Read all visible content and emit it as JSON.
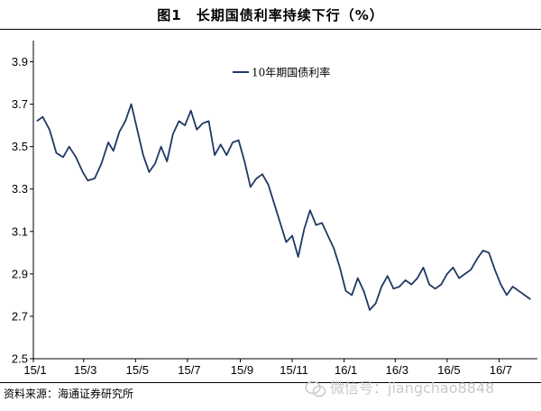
{
  "figure": {
    "title": "图1　长期国债利率持续下行（%）",
    "source": "资料来源：海通证券研究所",
    "watermark": "微信号：jiangchao8848"
  },
  "chart_data": {
    "type": "line",
    "title": "",
    "xlabel": "",
    "ylabel": "",
    "ylim": [
      2.5,
      4.0
    ],
    "yticks": [
      "2.5",
      "2.7",
      "2.9",
      "3.1",
      "3.3",
      "3.5",
      "3.7",
      "3.9"
    ],
    "xticks": [
      "15/1",
      "15/3",
      "15/5",
      "15/7",
      "15/9",
      "15/11",
      "16/1",
      "16/3",
      "16/5",
      "16/7"
    ],
    "xlim": [
      "2015-01-01",
      "2016-08-15"
    ],
    "grid": false,
    "legend_placement": "top-left",
    "series": [
      {
        "name": "10年期国债利率",
        "color": "#1f3864",
        "points": [
          [
            "2015-01-05",
            3.62
          ],
          [
            "2015-01-12",
            3.64
          ],
          [
            "2015-01-20",
            3.58
          ],
          [
            "2015-01-28",
            3.47
          ],
          [
            "2015-02-05",
            3.45
          ],
          [
            "2015-02-12",
            3.5
          ],
          [
            "2015-02-20",
            3.45
          ],
          [
            "2015-02-28",
            3.38
          ],
          [
            "2015-03-06",
            3.34
          ],
          [
            "2015-03-14",
            3.35
          ],
          [
            "2015-03-22",
            3.42
          ],
          [
            "2015-03-30",
            3.52
          ],
          [
            "2015-04-05",
            3.48
          ],
          [
            "2015-04-12",
            3.57
          ],
          [
            "2015-04-19",
            3.62
          ],
          [
            "2015-04-26",
            3.7
          ],
          [
            "2015-05-03",
            3.58
          ],
          [
            "2015-05-10",
            3.46
          ],
          [
            "2015-05-17",
            3.38
          ],
          [
            "2015-05-24",
            3.42
          ],
          [
            "2015-05-31",
            3.5
          ],
          [
            "2015-06-07",
            3.43
          ],
          [
            "2015-06-14",
            3.56
          ],
          [
            "2015-06-21",
            3.62
          ],
          [
            "2015-06-28",
            3.6
          ],
          [
            "2015-07-05",
            3.67
          ],
          [
            "2015-07-12",
            3.58
          ],
          [
            "2015-07-19",
            3.61
          ],
          [
            "2015-07-26",
            3.62
          ],
          [
            "2015-08-02",
            3.46
          ],
          [
            "2015-08-09",
            3.51
          ],
          [
            "2015-08-16",
            3.46
          ],
          [
            "2015-08-23",
            3.52
          ],
          [
            "2015-08-30",
            3.53
          ],
          [
            "2015-09-06",
            3.43
          ],
          [
            "2015-09-13",
            3.31
          ],
          [
            "2015-09-20",
            3.35
          ],
          [
            "2015-09-27",
            3.37
          ],
          [
            "2015-10-04",
            3.32
          ],
          [
            "2015-10-11",
            3.23
          ],
          [
            "2015-10-18",
            3.14
          ],
          [
            "2015-10-25",
            3.05
          ],
          [
            "2015-11-01",
            3.08
          ],
          [
            "2015-11-08",
            2.98
          ],
          [
            "2015-11-15",
            3.11
          ],
          [
            "2015-11-22",
            3.2
          ],
          [
            "2015-11-29",
            3.13
          ],
          [
            "2015-12-06",
            3.14
          ],
          [
            "2015-12-13",
            3.08
          ],
          [
            "2015-12-20",
            3.02
          ],
          [
            "2015-12-27",
            2.93
          ],
          [
            "2016-01-03",
            2.82
          ],
          [
            "2016-01-10",
            2.8
          ],
          [
            "2016-01-17",
            2.88
          ],
          [
            "2016-01-24",
            2.82
          ],
          [
            "2016-01-31",
            2.73
          ],
          [
            "2016-02-07",
            2.76
          ],
          [
            "2016-02-14",
            2.84
          ],
          [
            "2016-02-21",
            2.89
          ],
          [
            "2016-02-28",
            2.83
          ],
          [
            "2016-03-06",
            2.84
          ],
          [
            "2016-03-13",
            2.87
          ],
          [
            "2016-03-20",
            2.85
          ],
          [
            "2016-03-27",
            2.88
          ],
          [
            "2016-04-03",
            2.93
          ],
          [
            "2016-04-10",
            2.85
          ],
          [
            "2016-04-17",
            2.83
          ],
          [
            "2016-04-24",
            2.85
          ],
          [
            "2016-05-01",
            2.9
          ],
          [
            "2016-05-08",
            2.93
          ],
          [
            "2016-05-15",
            2.88
          ],
          [
            "2016-05-22",
            2.9
          ],
          [
            "2016-05-29",
            2.92
          ],
          [
            "2016-06-05",
            2.97
          ],
          [
            "2016-06-12",
            3.01
          ],
          [
            "2016-06-19",
            3.0
          ],
          [
            "2016-06-26",
            2.92
          ],
          [
            "2016-07-03",
            2.85
          ],
          [
            "2016-07-10",
            2.8
          ],
          [
            "2016-07-17",
            2.84
          ],
          [
            "2016-07-24",
            2.82
          ],
          [
            "2016-07-31",
            2.8
          ],
          [
            "2016-08-07",
            2.78
          ]
        ]
      }
    ]
  }
}
